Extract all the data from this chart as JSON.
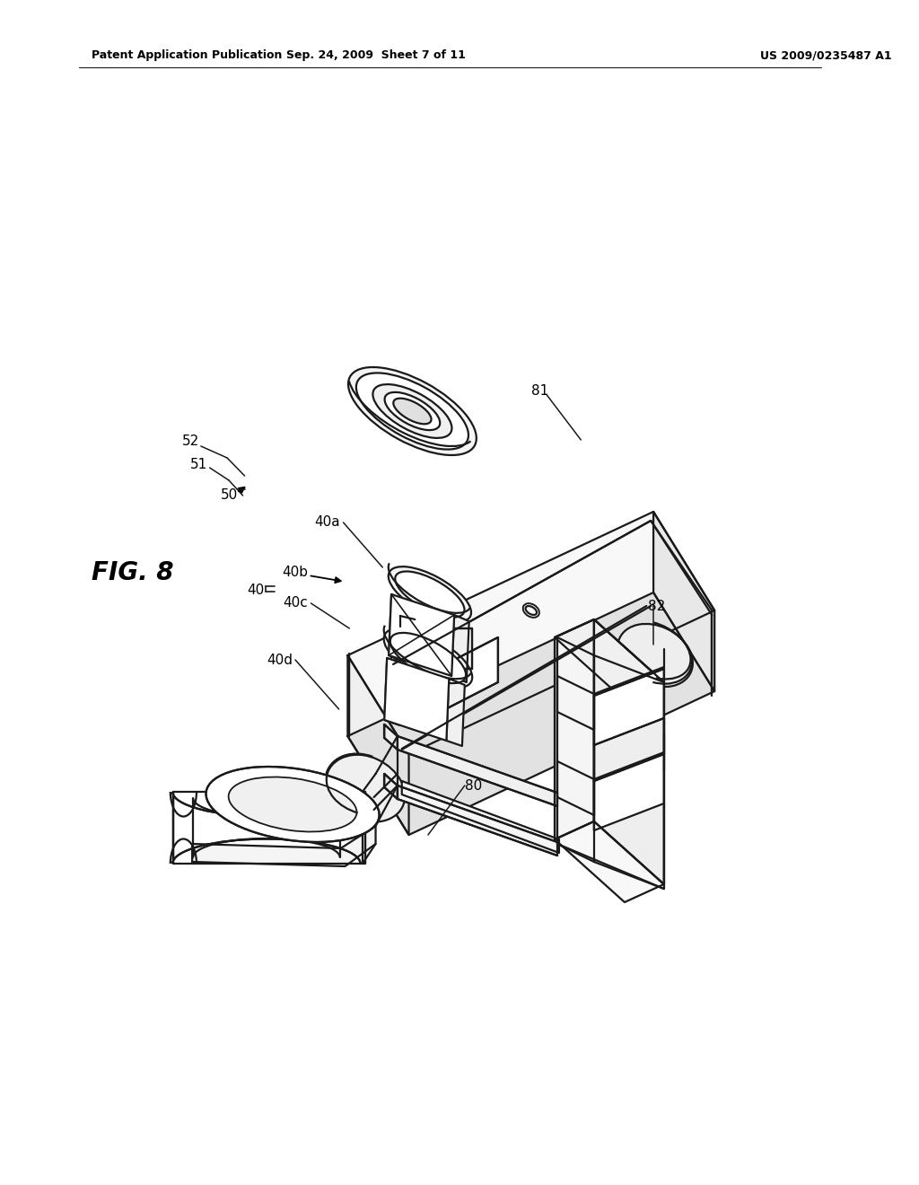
{
  "background_color": "#ffffff",
  "header_left": "Patent Application Publication",
  "header_center": "Sep. 24, 2009  Sheet 7 of 11",
  "header_right": "US 2009/0235487 A1",
  "fig_label": "FIG. 8",
  "line_color": "#1a1a1a",
  "line_width": 1.6,
  "text_color": "#000000",
  "header_fontsize": 9,
  "label_fontsize": 11,
  "fig_label_fontsize": 20
}
